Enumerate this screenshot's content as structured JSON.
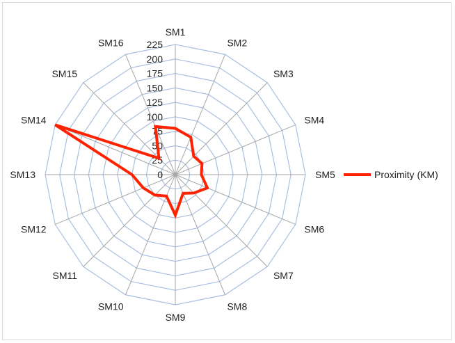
{
  "chart_data": {
    "type": "radar",
    "categories": [
      "SM1",
      "SM2",
      "SM3",
      "SM4",
      "SM5",
      "SM6",
      "SM7",
      "SM8",
      "SM9",
      "SM10",
      "SM11",
      "SM12",
      "SM13",
      "SM14",
      "SM15",
      "SM16"
    ],
    "series": [
      {
        "name": "Proximity (KM)",
        "color": "#ff2200",
        "values": [
          80,
          70,
          45,
          50,
          45,
          60,
          45,
          35,
          70,
          40,
          50,
          60,
          75,
          225,
          40,
          90
        ]
      }
    ],
    "rlim": [
      0,
      225
    ],
    "rticks": [
      0,
      25,
      50,
      75,
      100,
      125,
      150,
      175,
      200,
      225
    ],
    "grid": true,
    "grid_color": "#a9bfdf",
    "spoke_color": "#a6a6a6",
    "legend": "right"
  }
}
